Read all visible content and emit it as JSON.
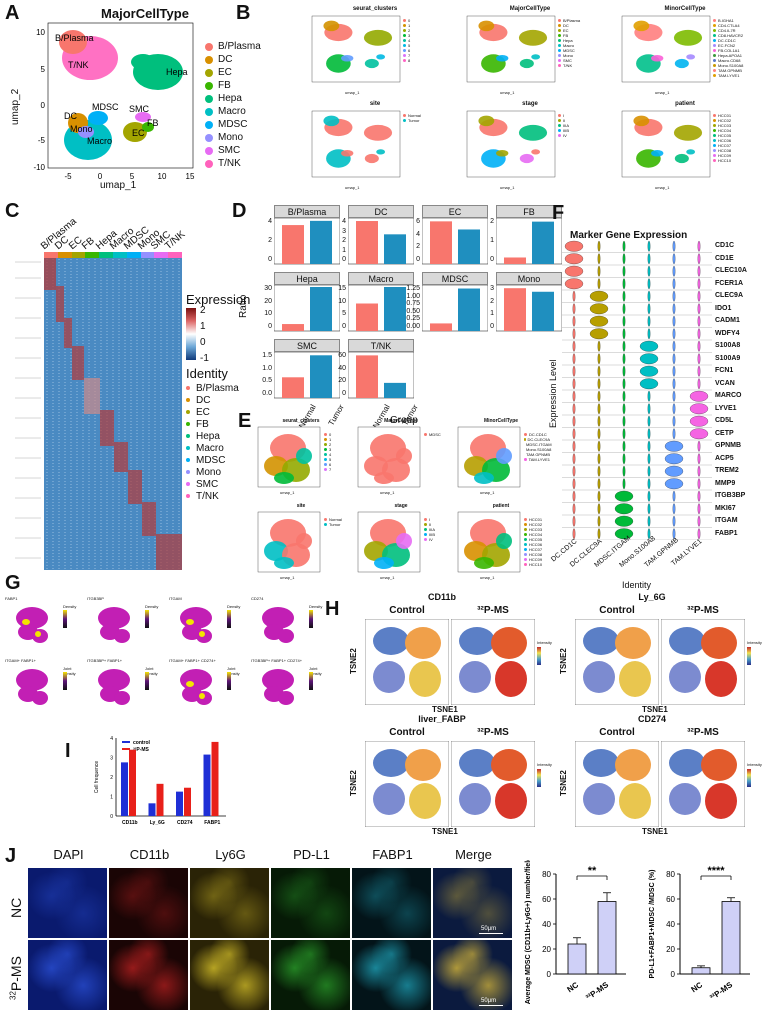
{
  "panels": {
    "A": "A",
    "B": "B",
    "C": "C",
    "D": "D",
    "E": "E",
    "F": "F",
    "G": "G",
    "H": "H",
    "I": "I",
    "J": "J"
  },
  "panelA": {
    "title": "MajorCellType",
    "xlabel": "umap_1",
    "ylabel": "umap_2",
    "xticks": [
      "-5",
      "0",
      "5",
      "10",
      "15"
    ],
    "yticks": [
      "10",
      "5",
      "0",
      "-5",
      "-10"
    ],
    "cluster_labels": [
      "B/Plasma",
      "T/NK",
      "Hepa",
      "MDSC",
      "SMC",
      "DC",
      "Mono",
      "Macro",
      "FB",
      "EC"
    ],
    "legend": [
      {
        "name": "B/Plasma",
        "color": "#F8766D"
      },
      {
        "name": "DC",
        "color": "#D89000"
      },
      {
        "name": "EC",
        "color": "#A3A500"
      },
      {
        "name": "FB",
        "color": "#39B600"
      },
      {
        "name": "Hepa",
        "color": "#00BF7D"
      },
      {
        "name": "Macro",
        "color": "#00BFC4"
      },
      {
        "name": "MDSC",
        "color": "#00B0F6"
      },
      {
        "name": "Mono",
        "color": "#9590FF"
      },
      {
        "name": "SMC",
        "color": "#E76BF3"
      },
      {
        "name": "T/NK",
        "color": "#FF62BC"
      }
    ]
  },
  "panelB": {
    "titles": [
      "seurat_clusters",
      "MajorCellType",
      "MinorCellType",
      "site",
      "stage",
      "patient"
    ],
    "site_legend": [
      "Normal",
      "Tumor"
    ],
    "stage_legend": [
      "I",
      "II",
      "IIIA",
      "IIIB",
      "IV"
    ],
    "patient_legend": [
      "HCC01",
      "HCC02",
      "HCC03",
      "HCC04",
      "HCC05",
      "HCC06",
      "HCC07",
      "HCC08",
      "HCC09",
      "HCC10"
    ],
    "xlabel": "umap_1",
    "ylabel": "umap_2"
  },
  "panelC": {
    "groups": [
      "B/Plasma",
      "DC",
      "EC",
      "FB",
      "Hepa",
      "Macro",
      "MDSC",
      "Mono",
      "SMC",
      "T/NK"
    ],
    "expression_title": "Expression",
    "expression_ticks": [
      "2",
      "1",
      "0",
      "-1"
    ],
    "identity_title": "Identity"
  },
  "panelD": {
    "ylabel": "Ratio",
    "xlabel": "Group",
    "xcats": [
      "Normal",
      "Tumor"
    ],
    "facets": [
      {
        "name": "B/Plasma",
        "values": [
          4.6,
          5.1
        ],
        "yticks": [
          "4",
          "2",
          "0"
        ],
        "ymax": 5.2
      },
      {
        "name": "DC",
        "values": [
          4.2,
          2.9
        ],
        "yticks": [
          "4",
          "3",
          "2",
          "1",
          "0"
        ],
        "ymax": 4.3
      },
      {
        "name": "EC",
        "values": [
          6.3,
          5.1
        ],
        "yticks": [
          "6",
          "4",
          "2",
          "0"
        ],
        "ymax": 6.5
      },
      {
        "name": "FB",
        "values": [
          0.4,
          2.6
        ],
        "yticks": [
          "2",
          "1",
          "0"
        ],
        "ymax": 2.7
      },
      {
        "name": "Hepa",
        "values": [
          6,
          38
        ],
        "yticks": [
          "30",
          "20",
          "10",
          "0"
        ],
        "ymax": 38
      },
      {
        "name": "Macro",
        "values": [
          10,
          16
        ],
        "yticks": [
          "15",
          "10",
          "5",
          "0"
        ],
        "ymax": 16
      },
      {
        "name": "MDSC",
        "values": [
          0.25,
          1.4
        ],
        "yticks": [
          "1.25",
          "1.00",
          "0.75",
          "0.50",
          "0.25",
          "0.00"
        ],
        "ymax": 1.45
      },
      {
        "name": "Mono",
        "values": [
          3.6,
          3.3
        ],
        "yticks": [
          "3",
          "2",
          "1",
          "0"
        ],
        "ymax": 3.7
      },
      {
        "name": "SMC",
        "values": [
          0.8,
          1.65
        ],
        "yticks": [
          "1.5",
          "1.0",
          "0.5",
          "0.0"
        ],
        "ymax": 1.7
      },
      {
        "name": "T/NK",
        "values": [
          62,
          22
        ],
        "yticks": [
          "60",
          "40",
          "20",
          "0"
        ],
        "ymax": 64
      }
    ]
  },
  "panelE": {
    "titles": [
      "seurat_clusters",
      "MajorCellType",
      "MinorCellType",
      "site",
      "stage",
      "patient"
    ],
    "xlabel": "umap_1",
    "ylabel": "umap_2"
  },
  "panelF": {
    "title": "Marker Gene Expression",
    "ylabel": "Expression Level",
    "xlabel": "Identity",
    "markers": [
      "CD1C",
      "CD1E",
      "CLEC10A",
      "FCER1A",
      "CLEC9A",
      "IDO1",
      "CADM1",
      "WDFY4",
      "S100A8",
      "S100A9",
      "FCN1",
      "VCAN",
      "MARCO",
      "LYVE1",
      "CD5L",
      "CETP",
      "GPNMB",
      "ACP5",
      "TREM2",
      "MMP9",
      "ITGB3BP",
      "MKI67",
      "ITGAM",
      "FABP1"
    ],
    "identities": [
      "DC.CD1C",
      "DC.CLEC9A",
      "MDSC.ITGAM",
      "Mono.S100A8",
      "TAM.GPNMB",
      "TAM.LYVE1"
    ]
  },
  "panelG": {
    "titles": [
      "FABP1",
      "ITGB3BP",
      "ITGAM",
      "CD274",
      "ITGAM+ FABP1+",
      "ITGB3BP+ FABP1+",
      "ITGAM+ FABP1+ CD274+",
      "ITGB3BP+ FABP1+ CD274+"
    ],
    "legend_density": "Density",
    "legend_joint": "Joint density"
  },
  "panelH": {
    "blocks": [
      {
        "marker": "CD11b",
        "conditions": [
          "Control",
          "32P-MS"
        ]
      },
      {
        "marker": "Ly_6G",
        "conditions": [
          "Control",
          "32P-MS"
        ]
      },
      {
        "marker": "liver_FABP",
        "conditions": [
          "Control",
          "32P-MS"
        ]
      },
      {
        "marker": "CD274",
        "conditions": [
          "Control",
          "32P-MS"
        ]
      }
    ],
    "xlabel": "TSNE1",
    "ylabel": "TSNE2",
    "legend_title": "Intensity"
  },
  "panelI": {
    "ylabel": "Cell frequence",
    "legend": [
      {
        "name": "control",
        "color": "#1f2fd6"
      },
      {
        "name": "32P-MS",
        "color": "#e8201a"
      }
    ],
    "chart_data": {
      "type": "bar",
      "categories": [
        "CD11b",
        "Ly_6G",
        "CD274",
        "FABP1"
      ],
      "series": [
        {
          "name": "control",
          "values": [
            2.75,
            0.65,
            1.25,
            3.15
          ]
        },
        {
          "name": "32P-MS",
          "values": [
            3.4,
            1.65,
            1.45,
            3.8
          ]
        }
      ],
      "ylim": [
        0,
        4
      ],
      "yticks": [
        "4",
        "3",
        "2",
        "1",
        "0"
      ]
    }
  },
  "panelJ": {
    "channels": [
      "DAPI",
      "CD11b",
      "Ly6G",
      "PD-L1",
      "FABP1",
      "Merge"
    ],
    "rows": [
      "NC",
      "32P-MS"
    ],
    "scale": "50μm",
    "chart_data": [
      {
        "type": "bar",
        "categories": [
          "NC",
          "32P-MS"
        ],
        "values": [
          24,
          58
        ],
        "errors": [
          5,
          7
        ],
        "ylim": [
          0,
          80
        ],
        "yticks": [
          "80",
          "60",
          "40",
          "20",
          "0"
        ],
        "ylabel": "Average MDSC (CD11b+Ly6G+) number/field (%)",
        "significance": "**"
      },
      {
        "type": "bar",
        "categories": [
          "NC",
          "32P-MS"
        ],
        "values": [
          5,
          58
        ],
        "errors": [
          1.5,
          3
        ],
        "ylim": [
          0,
          80
        ],
        "yticks": [
          "80",
          "60",
          "40",
          "20",
          "0"
        ],
        "ylabel": "PD-L1+FABP1+MDSC /MDSC (%)",
        "significance": "****"
      }
    ],
    "bar_color": "#cfd0f7"
  }
}
